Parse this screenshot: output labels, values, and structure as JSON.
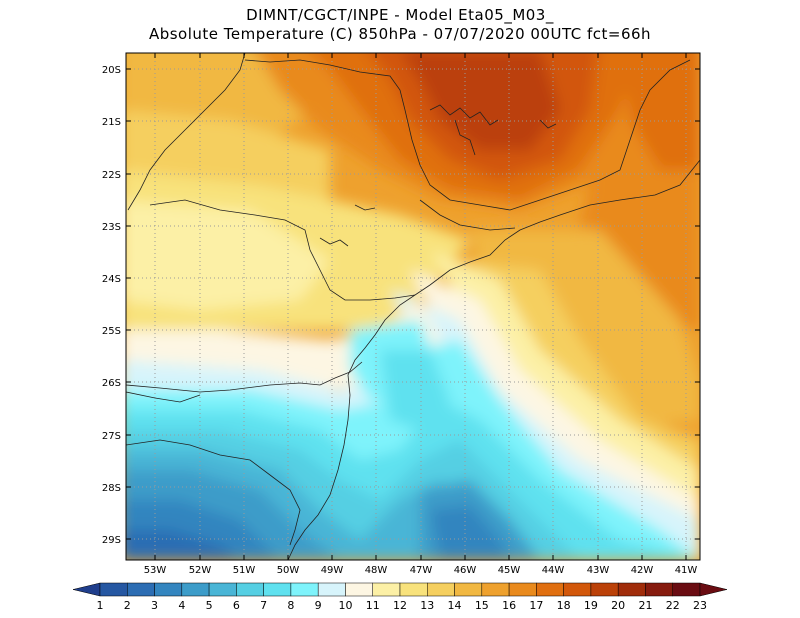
{
  "header": {
    "line1": "DIMNT/CGCT/INPE  -   Model Eta05_M03_",
    "line2": "Absolute Temperature (C) 850hPa  -   07/07/2020 00UTC fct=66h"
  },
  "axes": {
    "lat_labels": [
      "20S",
      "21S",
      "22S",
      "23S",
      "24S",
      "25S",
      "26S",
      "27S",
      "28S",
      "29S"
    ],
    "lon_labels": [
      "53W",
      "52W",
      "51W",
      "50W",
      "49W",
      "48W",
      "47W",
      "46W",
      "45W",
      "44W",
      "43W",
      "42W",
      "41W"
    ]
  },
  "colorbar": {
    "labels": [
      "1",
      "2",
      "3",
      "4",
      "5",
      "6",
      "7",
      "8",
      "9",
      "10",
      "11",
      "12",
      "13",
      "14",
      "15",
      "16",
      "17",
      "18",
      "19",
      "20",
      "21",
      "22",
      "23"
    ],
    "colors": [
      "#1f3e8c",
      "#2557a2",
      "#2c6db3",
      "#3385bf",
      "#3c9cc9",
      "#49b5d6",
      "#55cfe3",
      "#5fe1ef",
      "#7ef3fb",
      "#d7f4fb",
      "#fdf6e3",
      "#fcf0a6",
      "#f8e27c",
      "#f5cf5f",
      "#f1b842",
      "#eea12e",
      "#e98a1d",
      "#e06f10",
      "#d2570a",
      "#bb4108",
      "#a02c0a",
      "#861b0e",
      "#6a0c12"
    ]
  },
  "map_style": {
    "frame_color": "#000000",
    "grid_color": "#9a9a9a",
    "coast_color": "#222222"
  }
}
